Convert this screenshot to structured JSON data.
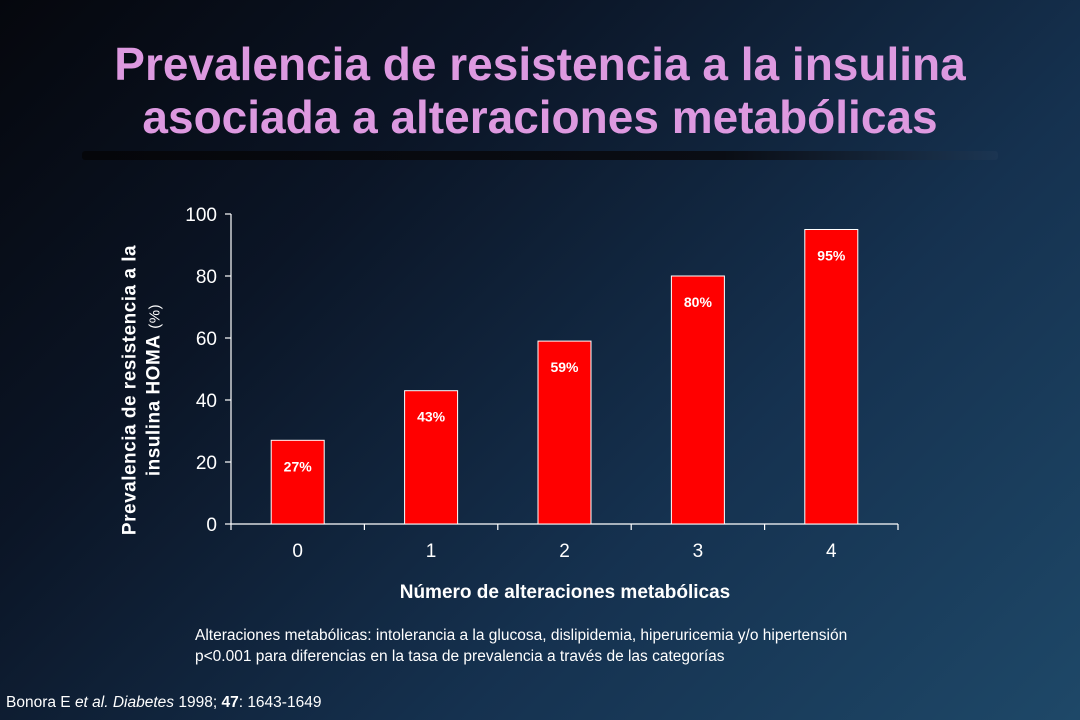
{
  "title": {
    "line1": "Prevalencia de resistencia a la insulina",
    "line2": "asociada a alteraciones metabólicas"
  },
  "chart_data": {
    "type": "bar",
    "categories": [
      "0",
      "1",
      "2",
      "3",
      "4"
    ],
    "values": [
      27,
      43,
      59,
      80,
      95
    ],
    "data_labels": [
      "27%",
      "43%",
      "59%",
      "80%",
      "95%"
    ],
    "xlabel": "Número de alteraciones metabólicas",
    "ylabel_line1": "Prevalencia de resistencia a la",
    "ylabel_line2": "insulina HOMA",
    "ylabel_unit": "(%)",
    "ylim": [
      0,
      100
    ],
    "yticks": [
      "0",
      "20",
      "40",
      "60",
      "80",
      "100"
    ],
    "grid": false,
    "bar_color": "#ff0000",
    "label_color": "#ffffff"
  },
  "notes": {
    "line1": "Alteraciones metabólicas: intolerancia a la glucosa, dislipidemia, hiperuricemia y/o hipertensión",
    "line2": "p<0.001 para diferencias en la tasa de prevalencia a través de las categorías"
  },
  "citation": {
    "authors": "Bonora E ",
    "etal": "et al.",
    "journal": "Diabetes",
    "year": " 1998; ",
    "volume": "47",
    "pages": ": 1643-1649"
  }
}
